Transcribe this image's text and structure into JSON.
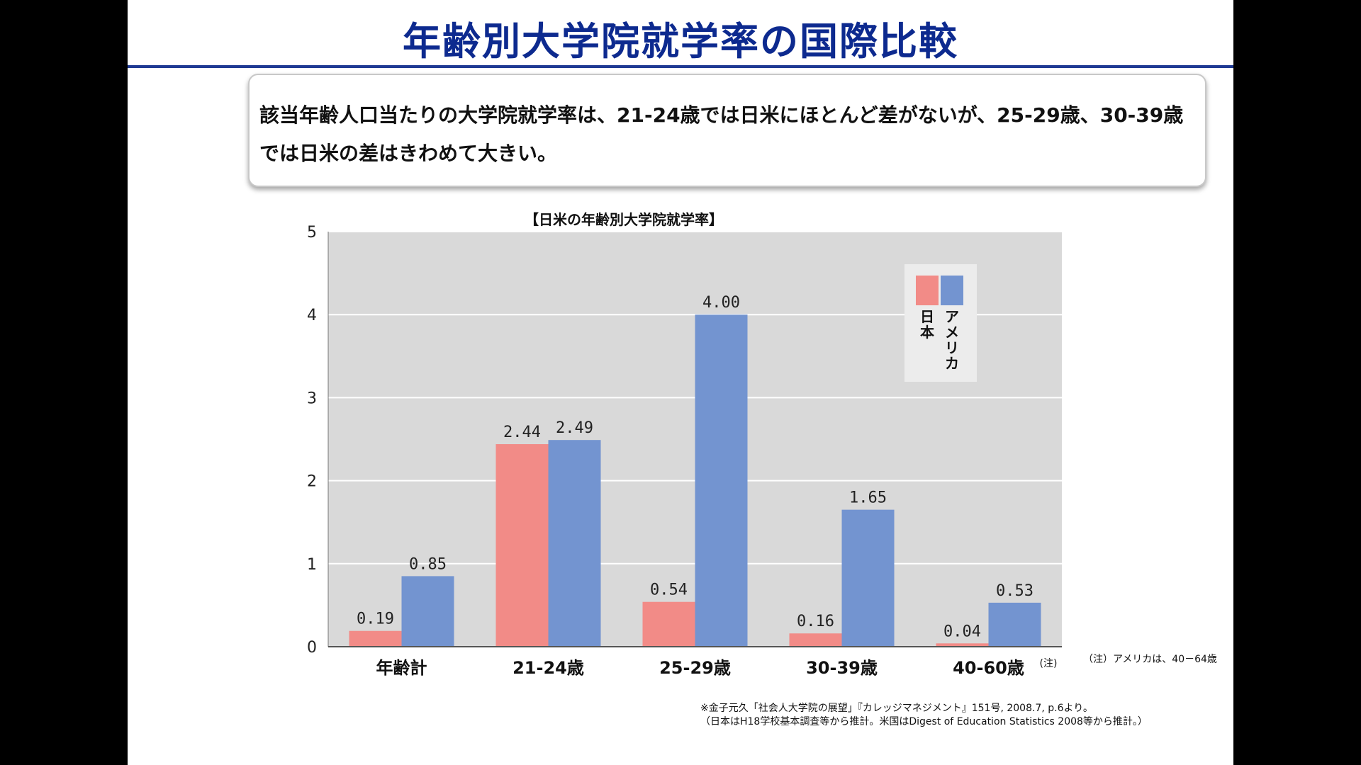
{
  "slide": {
    "title": "年齢別大学院就学率の国際比較",
    "callout": "該当年齢人口当たりの大学院就学率は、21-24歳では日米にほとんど差がないが、25-29歳、30-39歳では日米の差はきわめて大きい。",
    "us_age_note": "（注）アメリカは、40－64歳",
    "source_line1": "※金子元久「社会人大学院の展望」『カレッジマネジメント』151号, 2008.7, p.6より。",
    "source_line2": "（日本はH18学校基本調査等から推計。米国はDigest of Education Statistics 2008等から推計。）"
  },
  "chart_data": {
    "type": "bar",
    "title": "【日米の年齢別大学院就学率】",
    "categories": [
      "年齢計",
      "21-24歳",
      "25-29歳",
      "30-39歳",
      "40-60歳"
    ],
    "category_note": {
      "index": 4,
      "text": "(注)"
    },
    "series": [
      {
        "name": "日本",
        "values": [
          0.19,
          2.44,
          0.54,
          0.16,
          0.04
        ],
        "labels": [
          "0.19",
          "2.44",
          "0.54",
          "0.16",
          "0.04"
        ],
        "color": "#f28b87"
      },
      {
        "name": "アメリカ",
        "values": [
          0.85,
          2.49,
          4.0,
          1.65,
          0.53
        ],
        "labels": [
          "0.85",
          "2.49",
          "4.00",
          "1.65",
          "0.53"
        ],
        "color": "#7394d0"
      }
    ],
    "ylim": [
      0,
      5
    ],
    "yticks": [
      "0",
      "1",
      "2",
      "3",
      "4",
      "5"
    ],
    "grid": true,
    "plot_background": "#d9d9d9",
    "legend_position": "top-right"
  }
}
